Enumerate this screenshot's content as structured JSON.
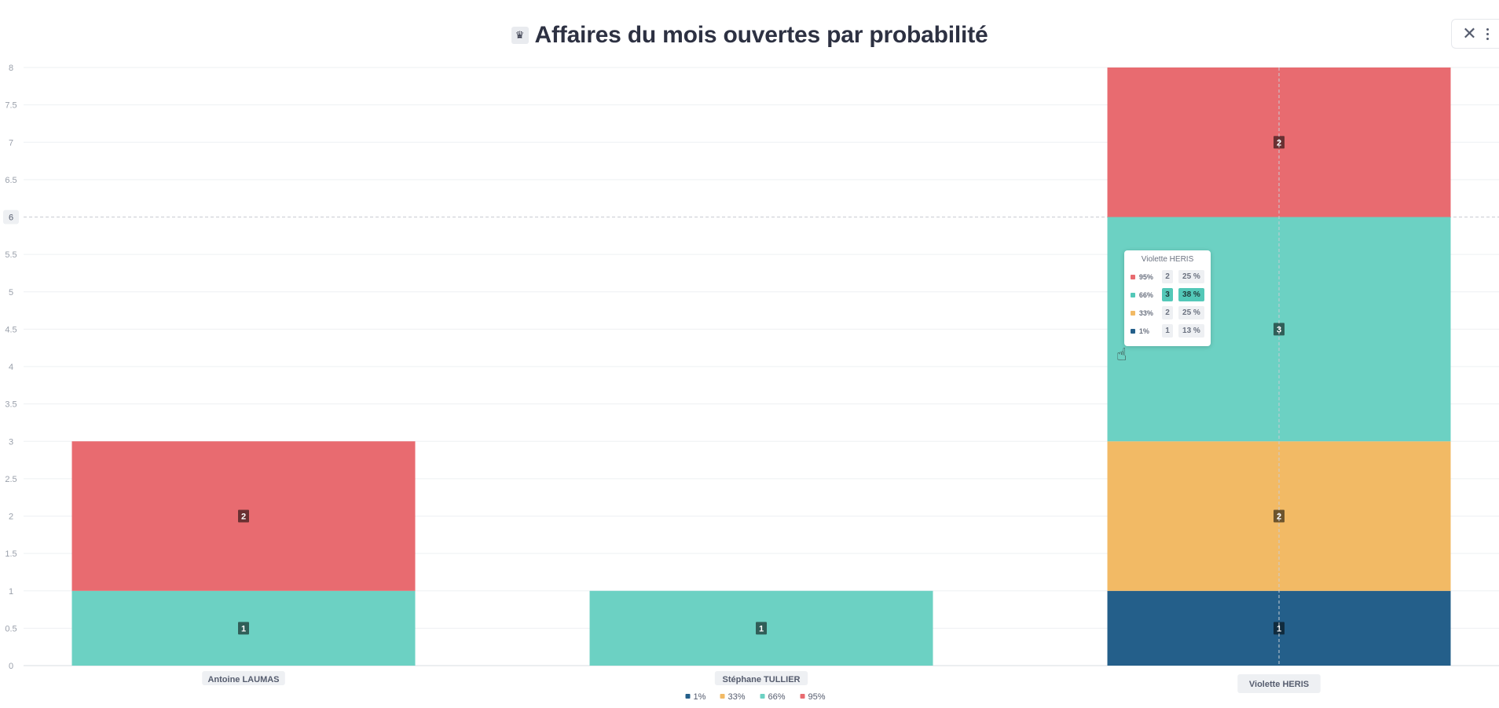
{
  "header": {
    "title": "Affaires du mois ouvertes par probabilité",
    "title_icon": "crown-icon",
    "close_icon": "close-icon",
    "more_icon": "more-vertical-icon"
  },
  "chart_data": {
    "type": "bar",
    "stacked": true,
    "title": "Affaires du mois ouvertes par probabilité",
    "categories": [
      "Antoine LAUMAS",
      "Stéphane TULLIER",
      "Violette HERIS"
    ],
    "series": [
      {
        "name": "1%",
        "color": "#245f8a",
        "values": [
          0,
          0,
          1
        ]
      },
      {
        "name": "33%",
        "color": "#f2ba65",
        "values": [
          0,
          0,
          2
        ]
      },
      {
        "name": "66%",
        "color": "#6cd1c3",
        "values": [
          1,
          1,
          3
        ]
      },
      {
        "name": "95%",
        "color": "#e86b70",
        "values": [
          2,
          0,
          2
        ]
      }
    ],
    "ylim": [
      0,
      8
    ],
    "yticks": [
      "0",
      "0.5",
      "1",
      "1.5",
      "2",
      "2.5",
      "3",
      "3.5",
      "4",
      "4.5",
      "5",
      "5.5",
      "6",
      "6.5",
      "7",
      "7.5",
      "8"
    ],
    "grid": true,
    "legend": "bottom-center",
    "highlight": {
      "category": "Violette HERIS",
      "y_value": "6"
    }
  },
  "tooltip": {
    "title": "Violette HERIS",
    "rows": [
      {
        "label": "95%",
        "color": "#e86b70",
        "count": "2",
        "percent": "25 %"
      },
      {
        "label": "66%",
        "color": "#53c8b8",
        "count": "3",
        "percent": "38 %",
        "highlight": true
      },
      {
        "label": "33%",
        "color": "#f2ba65",
        "count": "2",
        "percent": "25 %"
      },
      {
        "label": "1%",
        "color": "#245f8a",
        "count": "1",
        "percent": "13 %"
      }
    ]
  }
}
